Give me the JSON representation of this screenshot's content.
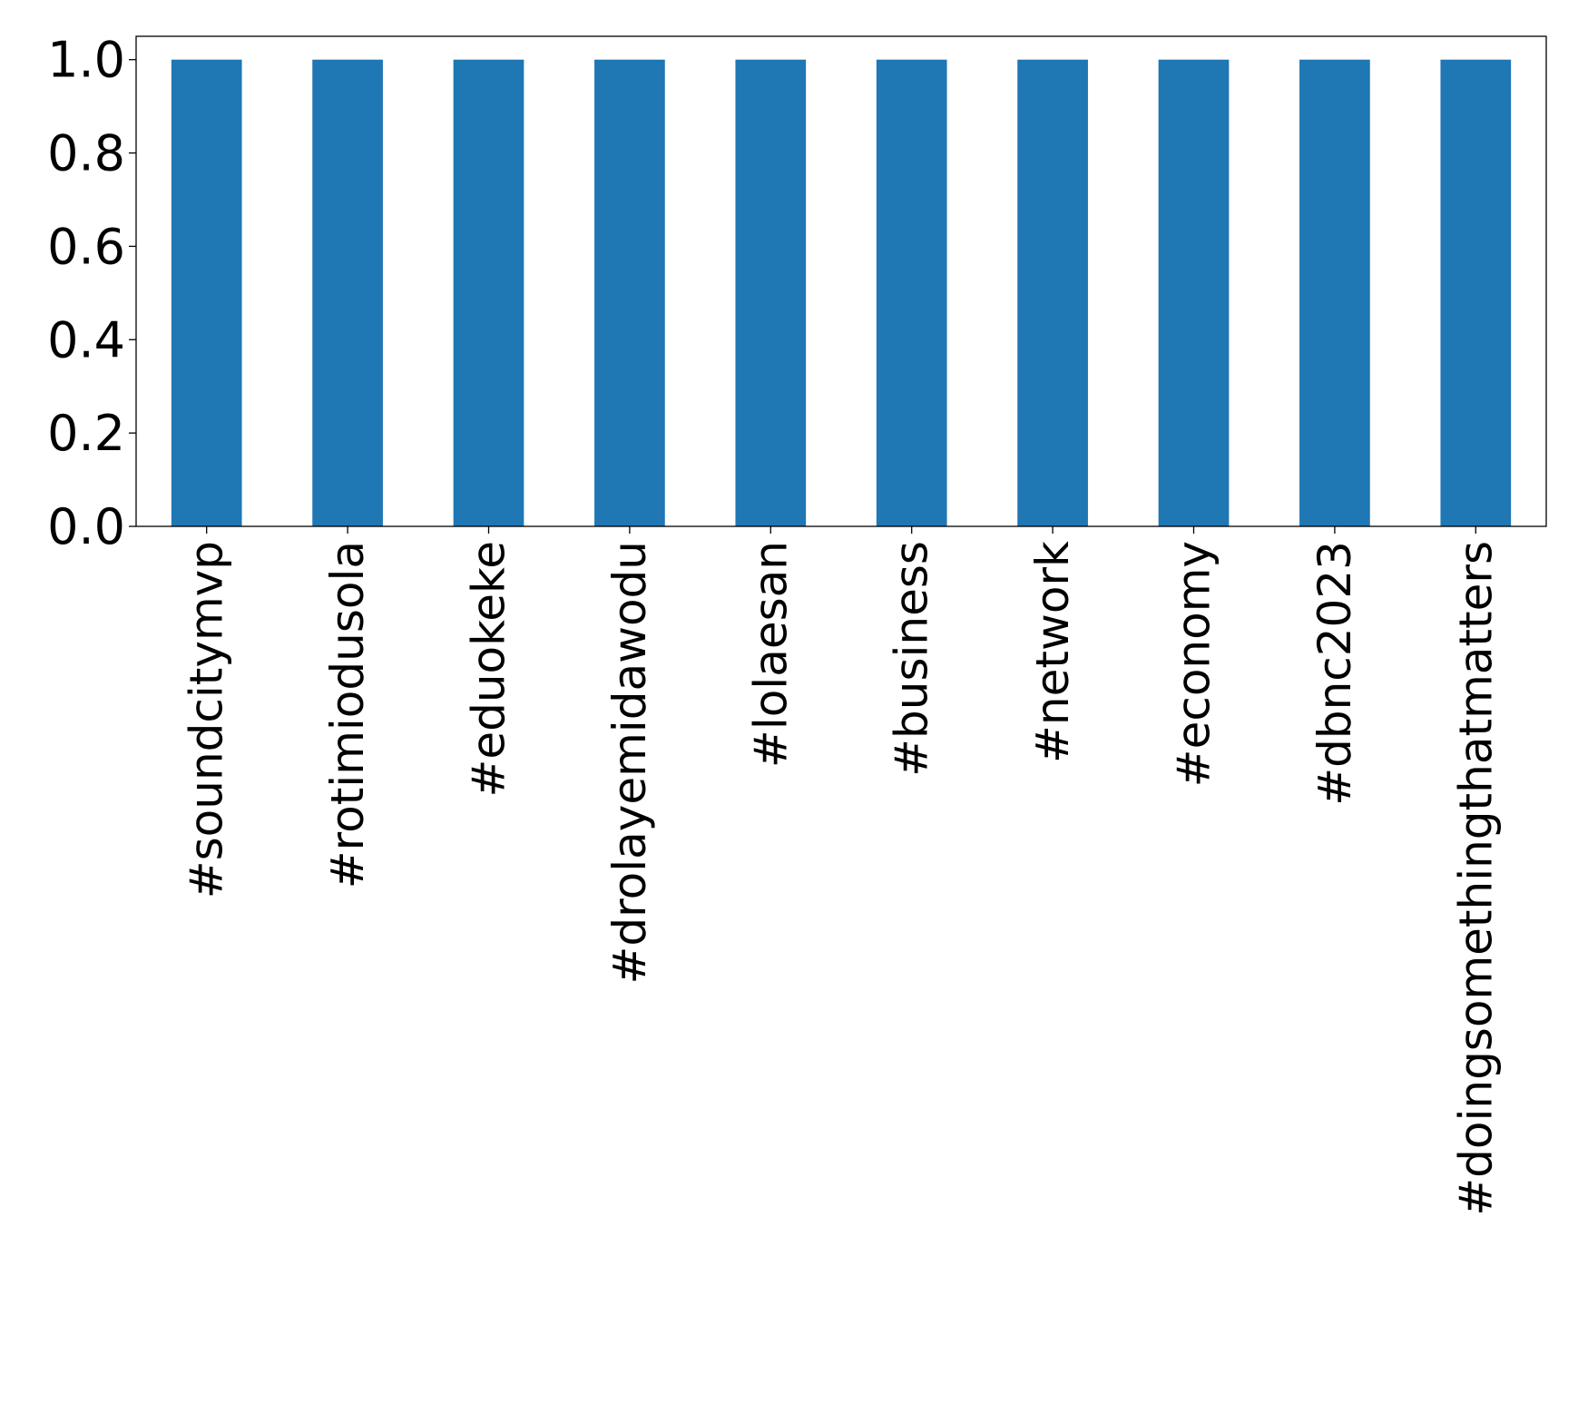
{
  "chart_data": {
    "type": "bar",
    "categories": [
      "#soundcitymvp",
      "#rotimiodusola",
      "#eduokeke",
      "#drolayemidawodu",
      "#lolaesan",
      "#business",
      "#network",
      "#economy",
      "#dbnc2023",
      "#doingsomethingthatmatters"
    ],
    "values": [
      1,
      1,
      1,
      1,
      1,
      1,
      1,
      1,
      1,
      1
    ],
    "ylim": [
      0,
      1.05
    ],
    "yticks": [
      0.0,
      0.2,
      0.4,
      0.6,
      0.8,
      1.0
    ],
    "ytick_labels": [
      "0.0",
      "0.2",
      "0.4",
      "0.6",
      "0.8",
      "1.0"
    ],
    "bar_color": "#1f77b4",
    "grid": false,
    "title": "",
    "xlabel": "",
    "ylabel": ""
  }
}
